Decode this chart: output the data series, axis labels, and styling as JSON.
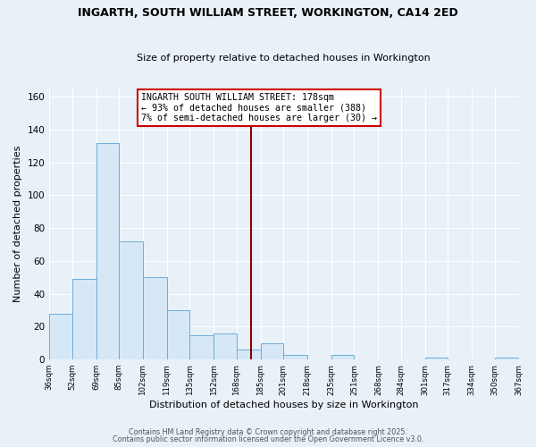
{
  "title": "INGARTH, SOUTH WILLIAM STREET, WORKINGTON, CA14 2ED",
  "subtitle": "Size of property relative to detached houses in Workington",
  "xlabel": "Distribution of detached houses by size in Workington",
  "ylabel": "Number of detached properties",
  "bar_color": "#d6e8f7",
  "bar_edge_color": "#6baed6",
  "background_color": "#e8f0f8",
  "plot_bg_color": "#e8f0f8",
  "grid_color": "#ffffff",
  "bins": [
    36,
    52,
    69,
    85,
    102,
    119,
    135,
    152,
    168,
    185,
    201,
    218,
    235,
    251,
    268,
    284,
    301,
    317,
    334,
    350,
    367
  ],
  "counts": [
    28,
    49,
    132,
    72,
    50,
    30,
    15,
    16,
    6,
    10,
    3,
    0,
    3,
    0,
    0,
    0,
    1,
    0,
    0,
    1
  ],
  "vline_x": 178,
  "vline_color": "#8b0000",
  "annotation_line1": "INGARTH SOUTH WILLIAM STREET: 178sqm",
  "annotation_line2": "← 93% of detached houses are smaller (388)",
  "annotation_line3": "7% of semi-detached houses are larger (30) →",
  "annotation_box_color": "#ffffff",
  "annotation_box_edge": "#cc0000",
  "ylim": [
    0,
    165
  ],
  "yticks": [
    0,
    20,
    40,
    60,
    80,
    100,
    120,
    140,
    160
  ],
  "footer1": "Contains HM Land Registry data © Crown copyright and database right 2025.",
  "footer2": "Contains public sector information licensed under the Open Government Licence v3.0.",
  "tick_labels": [
    "36sqm",
    "52sqm",
    "69sqm",
    "85sqm",
    "102sqm",
    "119sqm",
    "135sqm",
    "152sqm",
    "168sqm",
    "185sqm",
    "201sqm",
    "218sqm",
    "235sqm",
    "251sqm",
    "268sqm",
    "284sqm",
    "301sqm",
    "317sqm",
    "334sqm",
    "350sqm",
    "367sqm"
  ]
}
